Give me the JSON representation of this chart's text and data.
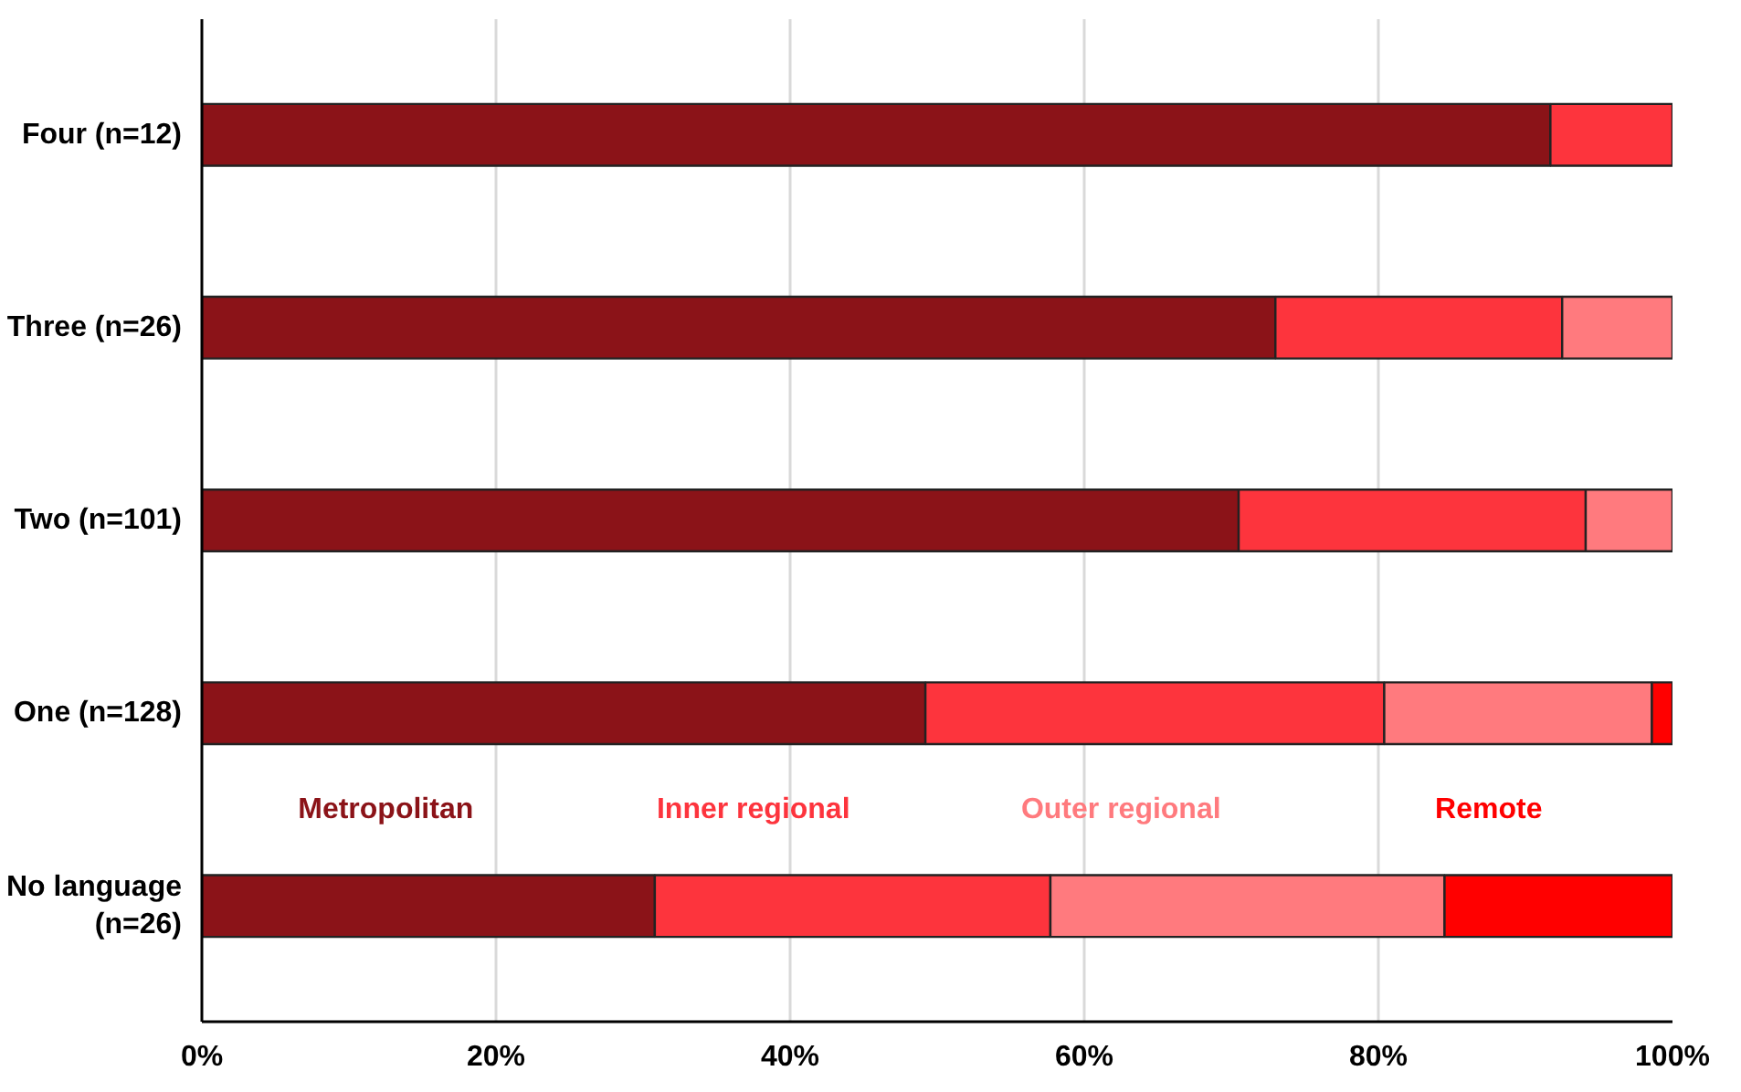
{
  "chart_data": {
    "type": "bar",
    "orientation": "horizontal",
    "stacked": true,
    "categories": [
      "Four (n=12)",
      "Three (n=26)",
      "Two (n=101)",
      "One (n=128)",
      "No language\n(n=26)"
    ],
    "series": [
      {
        "name": "Metropolitan",
        "color": "#8b1318",
        "values": [
          91.7,
          73.0,
          70.5,
          49.2,
          30.8
        ]
      },
      {
        "name": "Inner regional",
        "color": "#fd343d",
        "values": [
          8.3,
          19.5,
          23.6,
          31.2,
          26.9
        ]
      },
      {
        "name": "Outer regional",
        "color": "#ff7a7e",
        "values": [
          null,
          7.5,
          5.9,
          18.2,
          26.8
        ]
      },
      {
        "name": "Remote",
        "color": "#ff0000",
        "values": [
          null,
          null,
          null,
          1.4,
          15.5
        ]
      }
    ],
    "xlim": [
      0,
      100
    ],
    "xticks": [
      {
        "value": 0,
        "label": "0%"
      },
      {
        "value": 20,
        "label": "20%"
      },
      {
        "value": 40,
        "label": "40%"
      },
      {
        "value": 60,
        "label": "60%"
      },
      {
        "value": 80,
        "label": "80%"
      },
      {
        "value": 100,
        "label": "100%"
      }
    ],
    "grid": "x",
    "legend": "bottom"
  }
}
